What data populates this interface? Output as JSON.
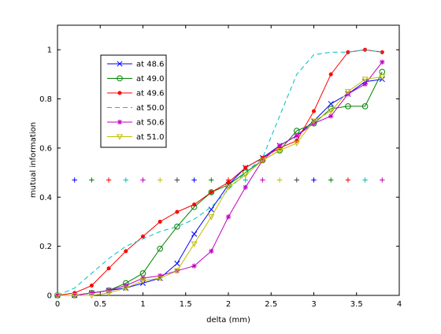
{
  "chart_data": {
    "type": "line",
    "xlabel": "delta (mm)",
    "ylabel": "mutual information",
    "xlim": [
      0,
      4
    ],
    "ylim": [
      0,
      1.1
    ],
    "xticks": [
      "0",
      "0.5",
      "1",
      "1.5",
      "2",
      "2.5",
      "3",
      "3.5",
      "4"
    ],
    "yticks": [
      "0",
      "0.2",
      "0.4",
      "0.6",
      "0.8",
      "1"
    ],
    "grid": false,
    "legend_position": "top-left",
    "series": [
      {
        "name": "at 48.6",
        "color": "#0000ff",
        "marker": "x",
        "dash": "solid",
        "x": [
          0,
          0.2,
          0.4,
          0.6,
          0.8,
          1.0,
          1.2,
          1.4,
          1.6,
          1.8,
          2.0,
          2.2,
          2.4,
          2.6,
          2.8,
          3.0,
          3.2,
          3.4,
          3.6,
          3.8
        ],
        "y": [
          0.0,
          0.0,
          0.01,
          0.02,
          0.03,
          0.05,
          0.07,
          0.13,
          0.25,
          0.35,
          0.45,
          0.52,
          0.56,
          0.61,
          0.65,
          0.71,
          0.78,
          0.82,
          0.87,
          0.88
        ]
      },
      {
        "name": "at 49.0",
        "color": "#008000",
        "marker": "o",
        "dash": "solid",
        "x": [
          0,
          0.2,
          0.4,
          0.6,
          0.8,
          1.0,
          1.2,
          1.4,
          1.6,
          1.8,
          2.0,
          2.2,
          2.4,
          2.6,
          2.8,
          3.0,
          3.2,
          3.4,
          3.6,
          3.8
        ],
        "y": [
          0.0,
          0.0,
          0.01,
          0.02,
          0.05,
          0.09,
          0.19,
          0.28,
          0.36,
          0.42,
          0.45,
          0.5,
          0.55,
          0.59,
          0.67,
          0.7,
          0.76,
          0.77,
          0.77,
          0.91
        ]
      },
      {
        "name": "at 49.6",
        "color": "#ff0000",
        "marker": "dot",
        "dash": "solid",
        "x": [
          0,
          0.2,
          0.4,
          0.6,
          0.8,
          1.0,
          1.2,
          1.4,
          1.6,
          1.8,
          2.0,
          2.2,
          2.4,
          2.6,
          2.8,
          3.0,
          3.2,
          3.4,
          3.6,
          3.8
        ],
        "y": [
          0.0,
          0.01,
          0.04,
          0.11,
          0.18,
          0.24,
          0.3,
          0.34,
          0.37,
          0.42,
          0.46,
          0.52,
          0.56,
          0.6,
          0.63,
          0.75,
          0.9,
          0.99,
          1.0,
          0.99
        ]
      },
      {
        "name": "at 50.0",
        "color": "#00bfbf",
        "marker": "none",
        "dash": "dashed",
        "x": [
          0,
          0.2,
          0.4,
          0.6,
          0.8,
          1.0,
          1.2,
          1.4,
          1.6,
          1.8,
          2.0,
          2.2,
          2.4,
          2.6,
          2.8,
          3.0,
          3.2,
          3.4,
          3.6,
          3.8
        ],
        "y": [
          0.0,
          0.03,
          0.09,
          0.15,
          0.2,
          0.23,
          0.26,
          0.28,
          0.31,
          0.36,
          0.43,
          0.5,
          0.56,
          0.73,
          0.9,
          0.98,
          0.99,
          0.99,
          1.0,
          0.99
        ]
      },
      {
        "name": "at 50.6",
        "color": "#bf00bf",
        "marker": "star",
        "dash": "solid",
        "x": [
          0,
          0.2,
          0.4,
          0.6,
          0.8,
          1.0,
          1.2,
          1.4,
          1.6,
          1.8,
          2.0,
          2.2,
          2.4,
          2.6,
          2.8,
          3.0,
          3.2,
          3.4,
          3.6,
          3.8
        ],
        "y": [
          0.0,
          0.0,
          0.01,
          0.02,
          0.04,
          0.07,
          0.08,
          0.1,
          0.12,
          0.18,
          0.32,
          0.44,
          0.55,
          0.61,
          0.65,
          0.7,
          0.73,
          0.82,
          0.86,
          0.95
        ]
      },
      {
        "name": "at 51.0",
        "color": "#bfbf00",
        "marker": "triangle-down",
        "dash": "solid",
        "x": [
          0,
          0.2,
          0.4,
          0.6,
          0.8,
          1.0,
          1.2,
          1.4,
          1.6,
          1.8,
          2.0,
          2.2,
          2.4,
          2.6,
          2.8,
          3.0,
          3.2,
          3.4,
          3.6,
          3.8
        ],
        "y": [
          0.0,
          0.0,
          0.0,
          0.01,
          0.03,
          0.06,
          0.07,
          0.1,
          0.21,
          0.32,
          0.44,
          0.49,
          0.55,
          0.59,
          0.62,
          0.71,
          0.75,
          0.83,
          0.88,
          0.89
        ]
      }
    ],
    "plus_markers": {
      "y": 0.47,
      "x": [
        0.2,
        0.4,
        0.6,
        0.8,
        1.0,
        1.2,
        1.4,
        1.6,
        1.8,
        2.0,
        2.2,
        2.4,
        2.6,
        2.8,
        3.0,
        3.2,
        3.4,
        3.6,
        3.8
      ],
      "colors": [
        "#0000ff",
        "#008000",
        "#ff0000",
        "#00bfbf",
        "#bf00bf",
        "#bfbf00",
        "#404040",
        "#0000ff",
        "#008000",
        "#ff0000",
        "#00bfbf",
        "#bf00bf",
        "#bfbf00",
        "#404040",
        "#0000ff",
        "#008000",
        "#ff0000",
        "#00bfbf",
        "#bf00bf"
      ]
    }
  }
}
